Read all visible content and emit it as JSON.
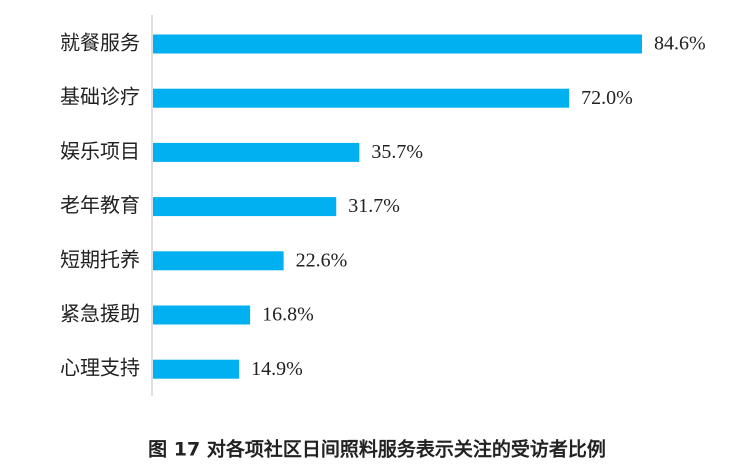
{
  "chart_data": {
    "type": "bar",
    "orientation": "horizontal",
    "title": "图 17  对各项社区日间照料服务表示关注的受访者比例",
    "categories": [
      "就餐服务",
      "基础诊疗",
      "娱乐项目",
      "老年教育",
      "短期托养",
      "紧急援助",
      "心理支持"
    ],
    "values": [
      84.6,
      72.0,
      35.7,
      31.7,
      22.6,
      16.8,
      14.9
    ],
    "value_labels": [
      "84.6%",
      "72.0%",
      "35.7%",
      "31.7%",
      "22.6%",
      "16.8%",
      "14.9%"
    ],
    "color": "#00b0f0"
  }
}
